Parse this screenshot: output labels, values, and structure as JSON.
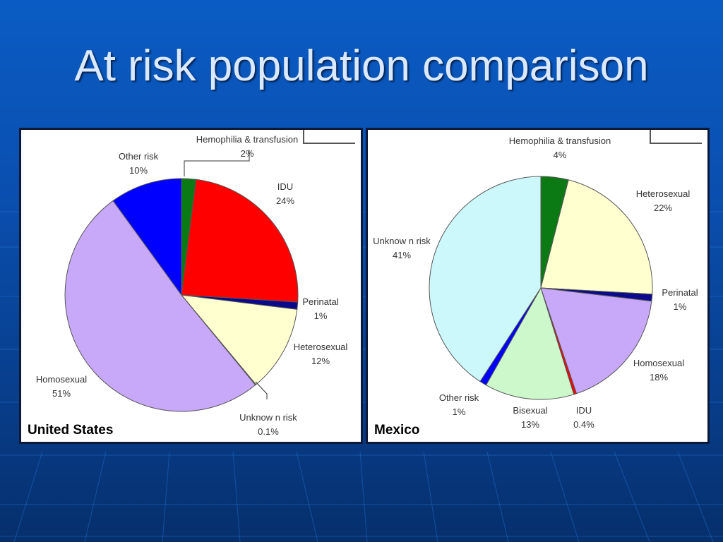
{
  "title": "At risk population comparison",
  "theme": {
    "background": "#0a4fb0",
    "title_color": "#dbe9ff",
    "panel_bg": "#ffffff"
  },
  "chart_data": [
    {
      "type": "pie",
      "caption": "United States",
      "slices": [
        {
          "label": "Hemophilia & transfusion",
          "value_text": "2%",
          "value": 2,
          "color": "#0b7a14"
        },
        {
          "label": "IDU",
          "value_text": "24%",
          "value": 24,
          "color": "#ff0000"
        },
        {
          "label": "Perinatal",
          "value_text": "1%",
          "value": 1,
          "color": "#0a0a8a"
        },
        {
          "label": "Heterosexual",
          "value_text": "12%",
          "value": 12,
          "color": "#ffffd0"
        },
        {
          "label": "Unknow n risk",
          "value_text": "0.1%",
          "value": 0.1,
          "color": "#b8f0f8"
        },
        {
          "label": "Homosexual",
          "value_text": "51%",
          "value": 51,
          "color": "#c8a8f8"
        },
        {
          "label": "Other risk",
          "value_text": "10%",
          "value": 10,
          "color": "#0000ff"
        }
      ]
    },
    {
      "type": "pie",
      "caption": "Mexico",
      "slices": [
        {
          "label": "Hemophilia & transfusion",
          "value_text": "4%",
          "value": 4,
          "color": "#0b7a14"
        },
        {
          "label": "Heterosexual",
          "value_text": "22%",
          "value": 22,
          "color": "#ffffd0"
        },
        {
          "label": "Perinatal",
          "value_text": "1%",
          "value": 1,
          "color": "#0a0a8a"
        },
        {
          "label": "Homosexual",
          "value_text": "18%",
          "value": 18,
          "color": "#c8a8f8"
        },
        {
          "label": "IDU",
          "value_text": "0.4%",
          "value": 0.4,
          "color": "#ff0000"
        },
        {
          "label": "Bisexual",
          "value_text": "13%",
          "value": 13,
          "color": "#ccf8cc"
        },
        {
          "label": "Other risk",
          "value_text": "1%",
          "value": 1,
          "color": "#0000ff"
        },
        {
          "label": "Unknow n risk",
          "value_text": "41%",
          "value": 41,
          "color": "#ccf8fc"
        }
      ]
    }
  ]
}
